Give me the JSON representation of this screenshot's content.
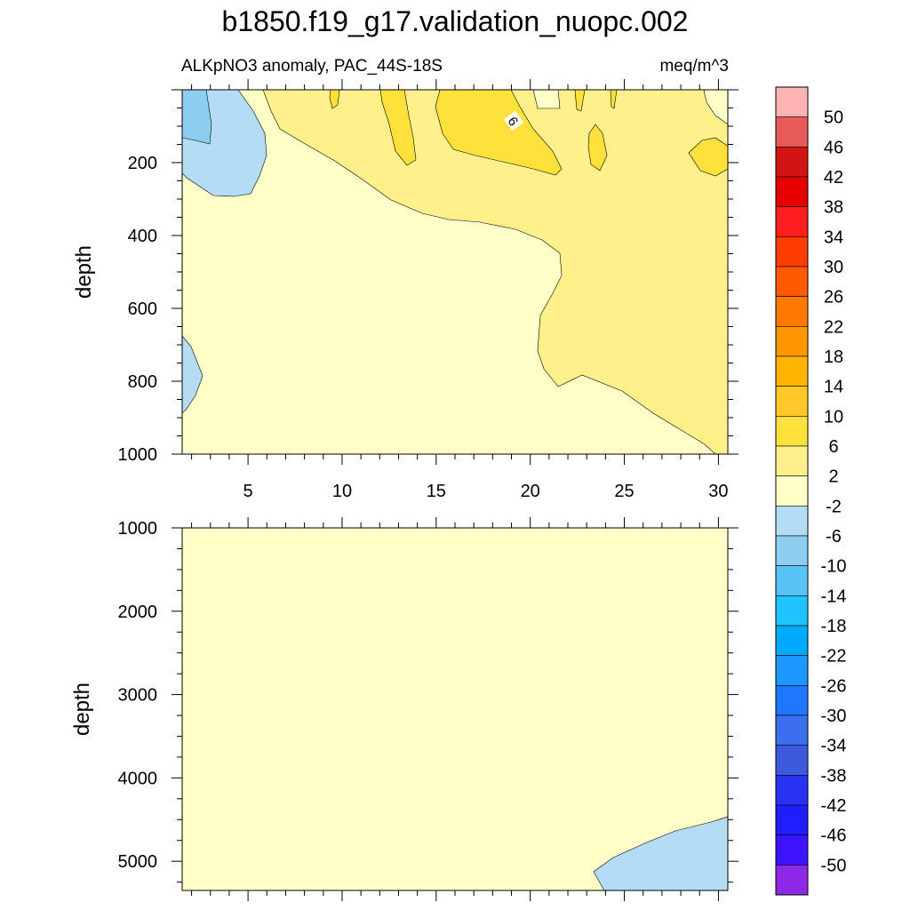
{
  "title": "b1850.f19_g17.validation_nuopc.002",
  "subtitle_left": "ALKpNO3 anomaly, PAC_44S-18S",
  "subtitle_right": "meq/m^3",
  "contour_label": "6",
  "chart_data": [
    {
      "type": "heatmap",
      "panel": "upper",
      "ylabel": "depth",
      "xlim": [
        1.5,
        30.5
      ],
      "ylim": [
        1000,
        0
      ],
      "xticks": [
        5,
        10,
        15,
        20,
        25,
        30
      ],
      "yticks": [
        200,
        400,
        600,
        800,
        1000
      ],
      "regions": [
        {
          "range": "-2 to 2",
          "color": "#ffffc8"
        },
        {
          "range": "2 to 6",
          "color": "#fff08c"
        },
        {
          "range": "6 to 10",
          "color": "#ffe13c"
        },
        {
          "range": "-6 to -2",
          "color": "#b4dcf5"
        },
        {
          "range": "-10 to -6",
          "color": "#8ccdf0"
        }
      ]
    },
    {
      "type": "heatmap",
      "panel": "lower",
      "ylabel": "depth",
      "xlim": [
        1.5,
        30.5
      ],
      "ylim": [
        5350,
        1000
      ],
      "yticks": [
        1000,
        2000,
        3000,
        4000,
        5000
      ],
      "regions": [
        {
          "range": "-2 to 2",
          "color": "#ffffc8"
        },
        {
          "range": "-6 to -2",
          "color": "#b4dcf5"
        }
      ]
    }
  ],
  "colorbar": {
    "labels": [
      "50",
      "46",
      "42",
      "38",
      "34",
      "30",
      "26",
      "22",
      "18",
      "14",
      "10",
      "6",
      "2",
      "-2",
      "-6",
      "-10",
      "-14",
      "-18",
      "-22",
      "-26",
      "-30",
      "-34",
      "-38",
      "-42",
      "-46",
      "-50"
    ],
    "colors": [
      "#ffb4b4",
      "#e65a5a",
      "#d21414",
      "#e60000",
      "#ff1e1e",
      "#ff3c00",
      "#ff5a00",
      "#ff7800",
      "#ff9600",
      "#ffb400",
      "#ffc828",
      "#ffe13c",
      "#fff08c",
      "#ffffc8",
      "#b4dcf5",
      "#8ccdf0",
      "#5ac3f5",
      "#1ec3ff",
      "#00aaff",
      "#1e96ff",
      "#1e78ff",
      "#3c6ef0",
      "#3c5adc",
      "#2832f0",
      "#1e1eff",
      "#3c14ff",
      "#8c28e6"
    ]
  }
}
